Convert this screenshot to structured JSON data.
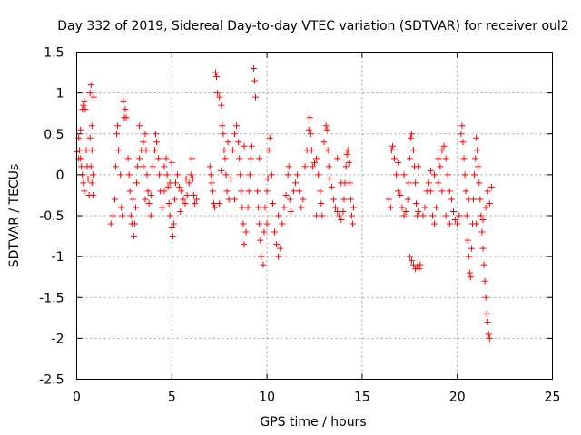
{
  "chart_data": {
    "type": "scatter",
    "title": "Day 332 of 2019, Sidereal Day-to-day VTEC variation (SDTVAR) for receiver oul2",
    "xlabel": "GPS time / hours",
    "ylabel": "SDTVAR / TECUs",
    "xlim": [
      0,
      25
    ],
    "ylim": [
      -2.5,
      1.5
    ],
    "xticks": [
      0,
      5,
      10,
      15,
      20,
      25
    ],
    "yticks": [
      -2.5,
      -2,
      -1.5,
      -1,
      -0.5,
      0,
      0.5,
      1,
      1.5
    ],
    "xtick_labels": [
      "0",
      "5",
      "10",
      "15",
      "20",
      "25"
    ],
    "ytick_labels": [
      "-2.5",
      "-2",
      "-1.5",
      "-1",
      "-0.5",
      "0",
      "0.5",
      "1",
      "1.5"
    ],
    "grid": true,
    "marker": "plus",
    "color": "#ff0000",
    "series": [
      {
        "name": "SDTVAR",
        "points": [
          [
            0.0,
            0.28
          ],
          [
            0.1,
            0.45
          ],
          [
            0.15,
            0.3
          ],
          [
            0.2,
            0.2
          ],
          [
            0.25,
            0.1
          ],
          [
            0.3,
            0.0
          ],
          [
            0.35,
            -0.1
          ],
          [
            0.4,
            -0.2
          ],
          [
            0.3,
            0.8
          ],
          [
            0.35,
            0.85
          ],
          [
            0.4,
            0.9
          ],
          [
            0.45,
            0.8
          ],
          [
            0.5,
            0.3
          ],
          [
            0.55,
            0.1
          ],
          [
            0.6,
            -0.05
          ],
          [
            0.65,
            -0.25
          ],
          [
            0.7,
            1.0
          ],
          [
            0.75,
            1.1
          ],
          [
            0.8,
            0.6
          ],
          [
            0.8,
            0.3
          ],
          [
            0.75,
            0.1
          ],
          [
            0.8,
            -0.1
          ],
          [
            0.85,
            -0.25
          ],
          [
            0.7,
            0.45
          ],
          [
            0.9,
            0.95
          ],
          [
            0.85,
            0.0
          ],
          [
            0.2,
            0.55
          ],
          [
            0.1,
            0.2
          ],
          [
            1.8,
            -0.6
          ],
          [
            1.9,
            -0.5
          ],
          [
            2.0,
            -0.3
          ],
          [
            2.05,
            0.1
          ],
          [
            2.1,
            0.5
          ],
          [
            2.15,
            0.6
          ],
          [
            2.2,
            0.3
          ],
          [
            2.3,
            0.0
          ],
          [
            2.35,
            -0.4
          ],
          [
            2.4,
            -0.5
          ],
          [
            2.45,
            0.9
          ],
          [
            2.5,
            0.7
          ],
          [
            2.55,
            0.8
          ],
          [
            2.6,
            0.7
          ],
          [
            2.7,
            0.2
          ],
          [
            2.75,
            0.0
          ],
          [
            2.8,
            -0.2
          ],
          [
            2.85,
            -0.5
          ],
          [
            2.9,
            -0.6
          ],
          [
            3.0,
            -0.75
          ],
          [
            3.05,
            -0.6
          ],
          [
            3.1,
            -0.4
          ],
          [
            3.15,
            -0.1
          ],
          [
            3.2,
            0.1
          ],
          [
            3.3,
            0.2
          ],
          [
            3.4,
            0.3
          ],
          [
            3.5,
            0.4
          ],
          [
            3.6,
            0.5
          ],
          [
            3.65,
            0.3
          ],
          [
            3.7,
            0.0
          ],
          [
            3.75,
            -0.2
          ],
          [
            3.8,
            -0.35
          ],
          [
            3.9,
            -0.25
          ],
          [
            4.0,
            0.1
          ],
          [
            4.1,
            0.3
          ],
          [
            4.15,
            0.5
          ],
          [
            4.2,
            0.4
          ],
          [
            4.3,
            0.2
          ],
          [
            4.35,
            0.0
          ],
          [
            4.4,
            -0.2
          ],
          [
            4.5,
            -0.4
          ],
          [
            4.6,
            -0.2
          ],
          [
            3.3,
            0.6
          ],
          [
            3.5,
            0.1
          ],
          [
            3.6,
            -0.3
          ],
          [
            3.9,
            -0.5
          ],
          [
            2.95,
            -0.3
          ],
          [
            4.6,
            0.1
          ],
          [
            4.7,
            0.2
          ],
          [
            4.75,
            0.0
          ],
          [
            4.8,
            -0.15
          ],
          [
            4.85,
            -0.35
          ],
          [
            4.9,
            -0.5
          ],
          [
            5.0,
            -0.65
          ],
          [
            5.05,
            -0.75
          ],
          [
            5.1,
            -0.6
          ],
          [
            5.15,
            -0.3
          ],
          [
            5.2,
            -0.1
          ],
          [
            5.3,
            0.0
          ],
          [
            5.4,
            -0.15
          ],
          [
            5.5,
            -0.2
          ],
          [
            5.6,
            -0.3
          ],
          [
            5.7,
            -0.35
          ],
          [
            5.8,
            -0.25
          ],
          [
            5.9,
            -0.1
          ],
          [
            6.0,
            0.0
          ],
          [
            6.05,
            0.2
          ],
          [
            6.1,
            -0.05
          ],
          [
            6.15,
            -0.25
          ],
          [
            6.2,
            -0.35
          ],
          [
            6.3,
            -0.3
          ],
          [
            4.9,
            -0.1
          ],
          [
            5.0,
            0.15
          ],
          [
            5.45,
            -0.45
          ],
          [
            5.75,
            -0.05
          ],
          [
            7.0,
            0.1
          ],
          [
            7.05,
            0.0
          ],
          [
            7.1,
            -0.1
          ],
          [
            7.15,
            -0.2
          ],
          [
            7.2,
            -0.35
          ],
          [
            7.25,
            -0.4
          ],
          [
            7.3,
            1.25
          ],
          [
            7.35,
            1.2
          ],
          [
            7.4,
            1.0
          ],
          [
            7.5,
            0.95
          ],
          [
            7.6,
            0.85
          ],
          [
            7.65,
            0.6
          ],
          [
            7.7,
            0.5
          ],
          [
            7.75,
            0.3
          ],
          [
            7.8,
            0.2
          ],
          [
            7.85,
            0.0
          ],
          [
            7.9,
            -0.2
          ],
          [
            8.0,
            -0.3
          ],
          [
            8.1,
            -0.05
          ],
          [
            8.2,
            0.3
          ],
          [
            8.3,
            0.5
          ],
          [
            8.4,
            0.6
          ],
          [
            8.5,
            0.4
          ],
          [
            8.55,
            0.2
          ],
          [
            8.6,
            0.0
          ],
          [
            8.65,
            -0.2
          ],
          [
            8.7,
            -0.4
          ],
          [
            8.75,
            -0.6
          ],
          [
            8.8,
            -0.85
          ],
          [
            8.9,
            -0.7
          ],
          [
            9.0,
            -0.4
          ],
          [
            9.05,
            -0.2
          ],
          [
            9.1,
            0.0
          ],
          [
            9.15,
            0.2
          ],
          [
            9.2,
            0.35
          ],
          [
            7.5,
            -0.35
          ],
          [
            7.6,
            0.05
          ],
          [
            8.3,
            -0.3
          ],
          [
            7.95,
            0.4
          ],
          [
            8.8,
            0.35
          ],
          [
            9.3,
            1.3
          ],
          [
            9.35,
            1.15
          ],
          [
            9.4,
            0.95
          ],
          [
            9.5,
            -0.2
          ],
          [
            9.55,
            -0.4
          ],
          [
            9.6,
            -0.6
          ],
          [
            9.65,
            -0.8
          ],
          [
            9.7,
            -1.0
          ],
          [
            9.8,
            -1.1
          ],
          [
            9.85,
            -0.7
          ],
          [
            9.9,
            -0.4
          ],
          [
            10.0,
            -0.2
          ],
          [
            10.05,
            -0.05
          ],
          [
            10.1,
            0.3
          ],
          [
            10.15,
            0.45
          ],
          [
            10.25,
            0.0
          ],
          [
            10.3,
            -0.35
          ],
          [
            10.4,
            -0.7
          ],
          [
            10.5,
            -0.85
          ],
          [
            10.6,
            -1.0
          ],
          [
            10.7,
            -0.9
          ],
          [
            10.8,
            -0.6
          ],
          [
            10.9,
            -0.4
          ],
          [
            11.0,
            -0.25
          ],
          [
            11.1,
            0.0
          ],
          [
            11.15,
            0.1
          ],
          [
            11.2,
            -0.3
          ],
          [
            11.25,
            -0.45
          ],
          [
            9.6,
            0.2
          ],
          [
            10.0,
            -0.6
          ],
          [
            10.6,
            -0.5
          ],
          [
            11.4,
            -0.2
          ],
          [
            11.5,
            -0.1
          ],
          [
            11.6,
            0.0
          ],
          [
            11.7,
            -0.2
          ],
          [
            11.8,
            -0.4
          ],
          [
            11.9,
            -0.3
          ],
          [
            12.0,
            0.1
          ],
          [
            12.1,
            0.3
          ],
          [
            12.2,
            0.55
          ],
          [
            12.25,
            0.7
          ],
          [
            12.3,
            0.5
          ],
          [
            12.35,
            0.3
          ],
          [
            12.4,
            0.1
          ],
          [
            12.5,
            0.15
          ],
          [
            12.6,
            0.2
          ],
          [
            12.7,
            0.0
          ],
          [
            12.8,
            -0.2
          ],
          [
            12.85,
            -0.35
          ],
          [
            12.9,
            -0.5
          ],
          [
            13.0,
            0.4
          ],
          [
            13.1,
            0.6
          ],
          [
            13.15,
            0.55
          ],
          [
            13.2,
            0.3
          ],
          [
            13.25,
            0.1
          ],
          [
            13.3,
            -0.05
          ],
          [
            13.4,
            -0.15
          ],
          [
            13.5,
            -0.3
          ],
          [
            13.6,
            -0.4
          ],
          [
            13.7,
            -0.45
          ],
          [
            13.8,
            -0.5
          ],
          [
            13.9,
            -0.55
          ],
          [
            14.0,
            -0.45
          ],
          [
            14.05,
            -0.3
          ],
          [
            14.1,
            -0.1
          ],
          [
            14.15,
            0.1
          ],
          [
            14.2,
            0.25
          ],
          [
            14.25,
            0.3
          ],
          [
            14.3,
            0.15
          ],
          [
            14.35,
            -0.1
          ],
          [
            14.4,
            -0.3
          ],
          [
            14.45,
            -0.5
          ],
          [
            14.5,
            -0.6
          ],
          [
            14.55,
            -0.4
          ],
          [
            13.7,
            0.2
          ],
          [
            13.9,
            -0.1
          ],
          [
            12.6,
            -0.5
          ],
          [
            16.4,
            -0.3
          ],
          [
            16.5,
            -0.4
          ],
          [
            16.55,
            0.3
          ],
          [
            16.6,
            0.35
          ],
          [
            16.7,
            0.2
          ],
          [
            16.8,
            0.0
          ],
          [
            16.9,
            -0.2
          ],
          [
            17.0,
            -0.25
          ],
          [
            17.1,
            -0.4
          ],
          [
            17.2,
            -0.5
          ],
          [
            17.3,
            -0.45
          ],
          [
            17.4,
            -0.3
          ],
          [
            17.45,
            -0.1
          ],
          [
            17.5,
            0.2
          ],
          [
            17.55,
            0.45
          ],
          [
            17.6,
            0.5
          ],
          [
            17.7,
            0.3
          ],
          [
            17.75,
            0.1
          ],
          [
            17.8,
            -0.1
          ],
          [
            17.85,
            -0.35
          ],
          [
            17.9,
            -0.5
          ],
          [
            17.95,
            -0.45
          ],
          [
            17.5,
            -1.0
          ],
          [
            17.6,
            -1.05
          ],
          [
            17.7,
            -1.1
          ],
          [
            17.8,
            -1.15
          ],
          [
            17.9,
            -1.12
          ],
          [
            18.0,
            -1.15
          ],
          [
            18.05,
            -1.1
          ],
          [
            17.95,
            0.1
          ],
          [
            17.2,
            0.0
          ],
          [
            16.9,
            0.15
          ],
          [
            18.2,
            -0.5
          ],
          [
            18.3,
            -0.4
          ],
          [
            18.4,
            -0.2
          ],
          [
            18.5,
            -0.1
          ],
          [
            18.6,
            -0.2
          ],
          [
            18.7,
            -0.5
          ],
          [
            18.8,
            -0.6
          ],
          [
            18.9,
            -0.4
          ],
          [
            19.0,
            -0.1
          ],
          [
            19.1,
            0.1
          ],
          [
            19.2,
            0.3
          ],
          [
            19.3,
            0.35
          ],
          [
            19.4,
            0.2
          ],
          [
            19.5,
            0.0
          ],
          [
            19.6,
            -0.2
          ],
          [
            19.7,
            -0.3
          ],
          [
            19.8,
            -0.45
          ],
          [
            19.9,
            -0.55
          ],
          [
            20.0,
            -0.6
          ],
          [
            20.1,
            -0.5
          ],
          [
            19.2,
            -0.2
          ],
          [
            19.4,
            -0.5
          ],
          [
            19.6,
            -0.6
          ],
          [
            18.6,
            0.05
          ],
          [
            19.0,
            0.2
          ],
          [
            18.8,
            0.0
          ],
          [
            20.2,
            0.5
          ],
          [
            20.25,
            0.6
          ],
          [
            20.3,
            0.4
          ],
          [
            20.35,
            0.2
          ],
          [
            20.4,
            0.0
          ],
          [
            20.45,
            -0.2
          ],
          [
            20.5,
            -0.5
          ],
          [
            20.55,
            -0.8
          ],
          [
            20.6,
            -1.0
          ],
          [
            20.65,
            -1.2
          ],
          [
            20.7,
            -1.25
          ],
          [
            20.75,
            -0.9
          ],
          [
            20.8,
            -0.6
          ],
          [
            20.85,
            -0.3
          ],
          [
            20.9,
            0.0
          ],
          [
            20.95,
            0.2
          ],
          [
            21.0,
            0.45
          ],
          [
            21.05,
            0.3
          ],
          [
            21.1,
            0.1
          ],
          [
            21.15,
            -0.1
          ],
          [
            21.2,
            -0.3
          ],
          [
            21.25,
            -0.5
          ],
          [
            21.3,
            -0.7
          ],
          [
            21.35,
            -0.9
          ],
          [
            21.4,
            -1.1
          ],
          [
            21.45,
            -1.3
          ],
          [
            21.5,
            -1.5
          ],
          [
            21.55,
            -1.7
          ],
          [
            21.6,
            -1.8
          ],
          [
            21.65,
            -1.95
          ],
          [
            21.7,
            -2.0
          ],
          [
            21.5,
            -0.4
          ],
          [
            21.6,
            -0.2
          ],
          [
            21.7,
            -0.35
          ],
          [
            21.8,
            -0.15
          ],
          [
            21.0,
            -0.6
          ],
          [
            20.6,
            -0.3
          ],
          [
            21.35,
            -0.55
          ]
        ]
      }
    ]
  }
}
